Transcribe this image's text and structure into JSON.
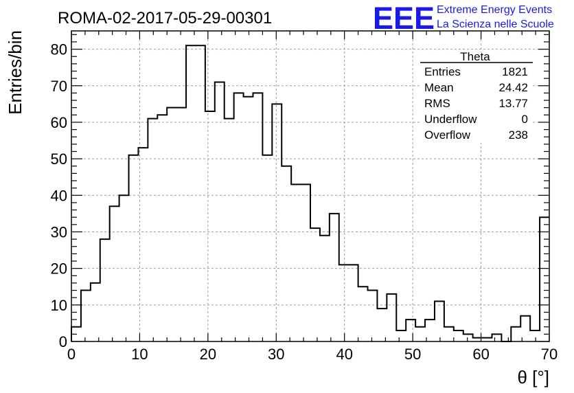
{
  "header": {
    "run_title": "ROMA-02-2017-05-29-00301",
    "logo_text": "EEE",
    "brand_line1": "Extreme Energy Events",
    "brand_line2": "La Scienza nelle Scuole"
  },
  "stats": {
    "title": "Theta",
    "rows": [
      {
        "label": "Entries",
        "value": "1821"
      },
      {
        "label": "Mean",
        "value": "24.42"
      },
      {
        "label": "RMS",
        "value": "13.77"
      },
      {
        "label": "Underflow",
        "value": "0"
      },
      {
        "label": "Overflow",
        "value": "238"
      }
    ]
  },
  "colors": {
    "brand_blue": "#1a1ae6",
    "line": "#000000",
    "grid": "#9a9a9a"
  },
  "chart_data": {
    "type": "bar",
    "style": "step-histogram",
    "xlabel": "θ [°]",
    "ylabel": "Entries/bin",
    "xlim": [
      0,
      70
    ],
    "ylim": [
      0,
      85
    ],
    "grid": true,
    "bin_width": 1.4,
    "x_ticks": [
      0,
      10,
      20,
      30,
      40,
      50,
      60,
      70
    ],
    "y_ticks": [
      0,
      10,
      20,
      30,
      40,
      50,
      60,
      70,
      80
    ],
    "values": [
      4,
      14,
      16,
      28,
      37,
      40,
      51,
      53,
      61,
      62,
      64,
      64,
      81,
      81,
      63,
      71,
      61,
      68,
      67,
      68,
      51,
      65,
      48,
      43,
      43,
      31,
      29,
      35,
      21,
      21,
      15,
      14,
      9,
      13,
      3,
      6,
      4,
      6,
      11,
      4,
      3,
      2,
      1,
      1,
      2,
      0,
      4,
      7,
      3,
      34
    ]
  }
}
